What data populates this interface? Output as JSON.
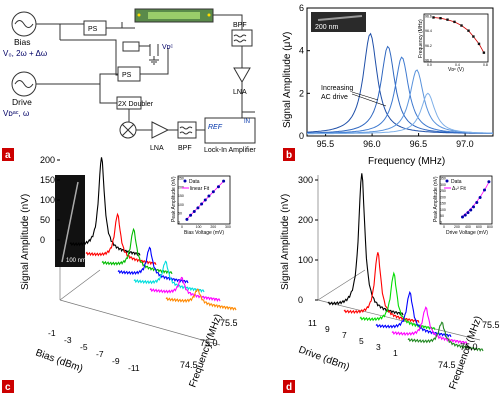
{
  "panels": {
    "a": {
      "label": "a",
      "bias_label": "Bias",
      "bias_formula": "V₀, 2ω + Δω",
      "drive_label": "Drive",
      "drive_formula": "Vᴅᵃᶜ, ω",
      "ps_label": "PS",
      "ps2_label": "PS",
      "vd_label": "Vᴅᶜ",
      "bpf_top_label": "BPF",
      "lna_right_label": "LNA",
      "doubler_label": "2X Doubler",
      "lna_label": "LNA",
      "bpf_label": "BPF",
      "ref_label": "REF",
      "in_label": "IN",
      "lockin_label": "Lock-In Amplifier"
    },
    "b": {
      "label": "b",
      "scale_bar": "200 nm",
      "annotation": "Increasing\nAC drive",
      "inset_ylabel": "Frequency (MHz)",
      "inset_xlabel": "Vᴅᶜ (V)"
    },
    "c": {
      "label": "c",
      "scale_bar": "100 nm",
      "inset_legend": [
        "Data",
        "linear Fit"
      ]
    },
    "d": {
      "label": "d",
      "inset_legend": [
        "Data",
        "Δₛ² Fit"
      ]
    }
  },
  "chart_data": [
    {
      "id": "b-main",
      "type": "line",
      "xlabel": "Frequency (MHz)",
      "ylabel": "Signal Amplitude (μV)",
      "xlim": [
        95.3,
        97.3
      ],
      "ylim": [
        0,
        6
      ],
      "xticks": [
        95.5,
        96.0,
        96.5,
        97.0
      ],
      "yticks": [
        0,
        2,
        4,
        6
      ],
      "series": [
        {
          "peak_x": 95.98,
          "peak_y": 4.7
        },
        {
          "peak_x": 96.17,
          "peak_y": 4.1
        },
        {
          "peak_x": 96.32,
          "peak_y": 3.6
        },
        {
          "peak_x": 96.48,
          "peak_y": 3.0
        },
        {
          "peak_x": 96.6,
          "peak_y": 1.9
        }
      ]
    },
    {
      "id": "b-inset",
      "type": "scatter",
      "xlim": [
        0,
        0.8
      ],
      "ylim": [
        96.0,
        96.6
      ],
      "xticks": [
        0.0,
        0.4,
        0.8
      ],
      "yticks": [
        96.0,
        96.2,
        96.4,
        96.6
      ],
      "points": [
        [
          0.05,
          96.58
        ],
        [
          0.15,
          96.57
        ],
        [
          0.25,
          96.55
        ],
        [
          0.35,
          96.52
        ],
        [
          0.45,
          96.47
        ],
        [
          0.55,
          96.4
        ],
        [
          0.62,
          96.32
        ],
        [
          0.7,
          96.22
        ],
        [
          0.77,
          96.1
        ]
      ]
    },
    {
      "id": "c-main",
      "type": "line",
      "xlabel": "Bias (dBm)",
      "ylabel": "Signal Amplitude (nV)",
      "zlabel": "Frequency (MHz)",
      "yticks": [
        0,
        50,
        100,
        150,
        200
      ],
      "bias_ticks": [
        "-1",
        "-3",
        "-5",
        "-7",
        "-9",
        "-11"
      ],
      "freq_ticks": [
        "74.5",
        "75.0",
        "75.5"
      ],
      "series": [
        {
          "bias": -1,
          "color": "#000000",
          "peak": 230
        },
        {
          "bias": -3,
          "color": "#ff0000",
          "peak": 110
        },
        {
          "bias": -5,
          "color": "#00bb00",
          "peak": 95
        },
        {
          "bias": -7,
          "color": "#0000ff",
          "peak": 72
        },
        {
          "bias": -9,
          "color": "#00dddd",
          "peak": 60
        },
        {
          "bias": -11,
          "color": "#ff00ff",
          "peak": 42
        },
        {
          "bias": -13,
          "color": "#ff8800",
          "peak": 35
        }
      ]
    },
    {
      "id": "c-inset",
      "type": "scatter",
      "xlabel": "Bias Voltage (mV)",
      "ylabel": "Peak Amplitude (nV)",
      "xlim": [
        0,
        300
      ],
      "ylim": [
        0,
        250
      ],
      "xticks": [
        0,
        100,
        200,
        300
      ],
      "yticks": [
        0,
        50,
        100,
        150,
        200,
        250
      ],
      "points": [
        [
          20,
          15
        ],
        [
          45,
          38
        ],
        [
          70,
          60
        ],
        [
          95,
          80
        ],
        [
          120,
          102
        ],
        [
          145,
          125
        ],
        [
          170,
          148
        ],
        [
          200,
          172
        ],
        [
          235,
          200
        ],
        [
          270,
          232
        ]
      ]
    },
    {
      "id": "d-main",
      "type": "line",
      "xlabel": "Drive (dBm)",
      "ylabel": "Signal Amplitude (nV)",
      "zlabel": "Frequency (MHz)",
      "yticks": [
        0,
        100,
        200,
        300
      ],
      "drive_ticks": [
        "11",
        "9",
        "7",
        "5",
        "3",
        "1"
      ],
      "freq_ticks": [
        "74.5",
        "75.0",
        "75.5"
      ],
      "series": [
        {
          "drive": 11,
          "color": "#000000",
          "peak": 340
        },
        {
          "drive": 9,
          "color": "#ff0000",
          "peak": 160
        },
        {
          "drive": 7,
          "color": "#00dd00",
          "peak": 125
        },
        {
          "drive": 5,
          "color": "#0000ff",
          "peak": 95
        },
        {
          "drive": 3,
          "color": "#ff00ff",
          "peak": 75
        },
        {
          "drive": 1,
          "color": "#228822",
          "peak": 55
        }
      ]
    },
    {
      "id": "d-inset",
      "type": "scatter",
      "xlabel": "Drive Voltage (mV)",
      "ylabel": "Peak Amplitude (nV)",
      "xlim": [
        0,
        800
      ],
      "ylim": [
        0,
        350
      ],
      "xticks": [
        0,
        200,
        400,
        600,
        800
      ],
      "yticks": [
        0,
        50,
        100,
        150,
        200,
        250,
        300,
        350
      ],
      "points": [
        [
          300,
          40
        ],
        [
          350,
          55
        ],
        [
          400,
          75
        ],
        [
          450,
          95
        ],
        [
          500,
          120
        ],
        [
          560,
          155
        ],
        [
          620,
          195
        ],
        [
          700,
          255
        ],
        [
          780,
          320
        ]
      ]
    }
  ]
}
